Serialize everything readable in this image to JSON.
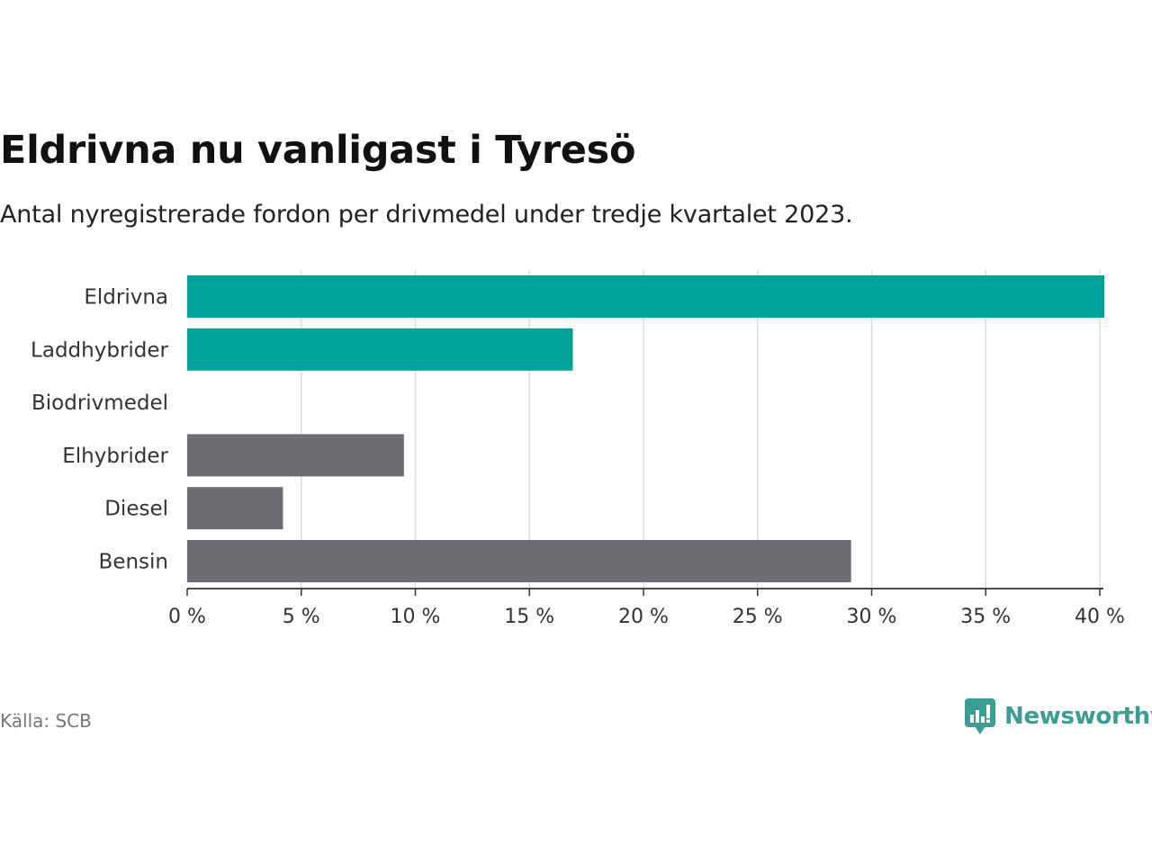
{
  "header": {
    "title": "Eldrivna nu vanligast i Tyresö",
    "subtitle": "Antal nyregistrerade fordon per drivmedel under tredje kvartalet 2023."
  },
  "chart_data": {
    "type": "bar",
    "orientation": "horizontal",
    "title": "Eldrivna nu vanligast i Tyresö",
    "subtitle": "Antal nyregistrerade fordon per drivmedel under tredje kvartalet 2023.",
    "xlabel": "",
    "ylabel": "",
    "categories": [
      "Eldrivna",
      "Laddhybrider",
      "Biodrivmedel",
      "Elhybrider",
      "Diesel",
      "Bensin"
    ],
    "values": [
      40.2,
      16.9,
      0,
      9.5,
      4.2,
      29.1
    ],
    "unit": "%",
    "xlim": [
      0,
      40
    ],
    "ticks": [
      0,
      5,
      10,
      15,
      20,
      25,
      30,
      35,
      40
    ],
    "tick_labels": [
      "0 %",
      "5 %",
      "10 %",
      "15 %",
      "20 %",
      "25 %",
      "30 %",
      "35 %",
      "40 %"
    ],
    "grid": true,
    "colors": {
      "highlight": "#00a39a",
      "default": "#6e6d74",
      "grid": "#dddddd",
      "axis": "#333333"
    },
    "highlighted_categories": [
      "Eldrivna",
      "Laddhybrider"
    ]
  },
  "footer": {
    "source": "Källa: SCB",
    "brand_name": "Newsworthy",
    "brand_color": "#3a9e95",
    "brand_icon": "bar-chart-speech-bubble-icon"
  }
}
